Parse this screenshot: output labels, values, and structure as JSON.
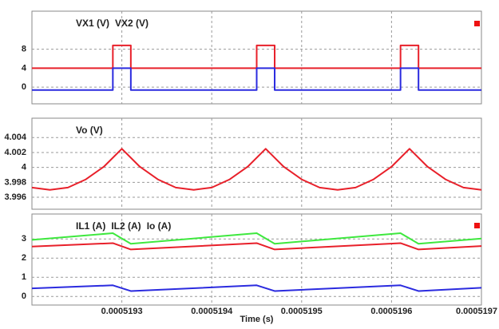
{
  "chart_data": [
    {
      "type": "line",
      "xlim": [
        0.0005192,
        0.0005197
      ],
      "ylim": [
        -3.5,
        16
      ],
      "yticks": [
        0,
        4,
        8
      ],
      "grid": true,
      "x": [
        0.0005192,
        0.00051929,
        0.00051929,
        0.00051931,
        0.00051931,
        0.00051945,
        0.00051945,
        0.00051947,
        0.00051947,
        0.00051961,
        0.00051961,
        0.00051963,
        0.00051963,
        0.0005197
      ],
      "series": [
        {
          "name": "VX1 (V)",
          "color": "#e8202a",
          "values": [
            4,
            4,
            8.8,
            8.8,
            4,
            4,
            8.8,
            8.8,
            4,
            4,
            8.8,
            8.8,
            4,
            4
          ]
        },
        {
          "name": "VX2 (V)",
          "color": "#2b2bdf",
          "values": [
            -0.6,
            -0.6,
            4,
            4,
            -0.6,
            -0.6,
            4,
            4,
            -0.6,
            -0.6,
            4,
            4,
            -0.6,
            -0.6
          ]
        }
      ]
    },
    {
      "type": "line",
      "xlim": [
        0.0005192,
        0.0005197
      ],
      "ylim": [
        3.9944,
        4.0066
      ],
      "yticks": [
        3.996,
        3.998,
        4,
        4.002,
        4.004
      ],
      "grid": true,
      "x": [
        0.0005192,
        0.00051922,
        0.00051924,
        0.00051926,
        0.00051928,
        0.0005193,
        0.00051932,
        0.00051934,
        0.00051936,
        0.00051938,
        0.0005194,
        0.00051942,
        0.00051944,
        0.00051946,
        0.00051948,
        0.0005195,
        0.00051952,
        0.00051954,
        0.00051956,
        0.00051958,
        0.0005196,
        0.00051962,
        0.00051964,
        0.00051966,
        0.00051968,
        0.0005197
      ],
      "series": [
        {
          "name": "Vo (V)",
          "color": "#e8202a",
          "values": [
            3.9973,
            3.997,
            3.9973,
            3.9984,
            4.0001,
            4.0025,
            4.0001,
            3.9984,
            3.9973,
            3.997,
            3.9973,
            3.9984,
            4.0001,
            4.0025,
            4.0001,
            3.9984,
            3.9973,
            3.997,
            3.9973,
            3.9984,
            4.0001,
            4.0025,
            4.0001,
            3.9984,
            3.9973,
            3.997
          ]
        }
      ]
    },
    {
      "type": "line",
      "xlim": [
        0.0005192,
        0.0005197
      ],
      "ylim": [
        -0.45,
        4.3
      ],
      "yticks": [
        0,
        1,
        2,
        3
      ],
      "xticks": [
        0.0005193,
        0.0005194,
        0.0005195,
        0.0005196,
        0.0005197
      ],
      "xlabel": "Time (s)",
      "grid": true,
      "x": [
        0.0005192,
        0.00051929,
        0.00051931,
        0.00051945,
        0.00051947,
        0.00051961,
        0.00051963,
        0.0005197
      ],
      "series": [
        {
          "name": "IL1 (A)",
          "color": "#e8202a",
          "values": [
            2.6,
            2.78,
            2.45,
            2.78,
            2.45,
            2.78,
            2.45,
            2.63
          ]
        },
        {
          "name": "IL2 (A)",
          "color": "#2b2bdf",
          "values": [
            0.42,
            0.58,
            0.28,
            0.58,
            0.28,
            0.58,
            0.28,
            0.45
          ]
        },
        {
          "name": "Io (A)",
          "color": "#3ee83e",
          "values": [
            2.95,
            3.3,
            2.75,
            3.3,
            2.75,
            3.3,
            2.75,
            3.02
          ]
        }
      ]
    }
  ]
}
